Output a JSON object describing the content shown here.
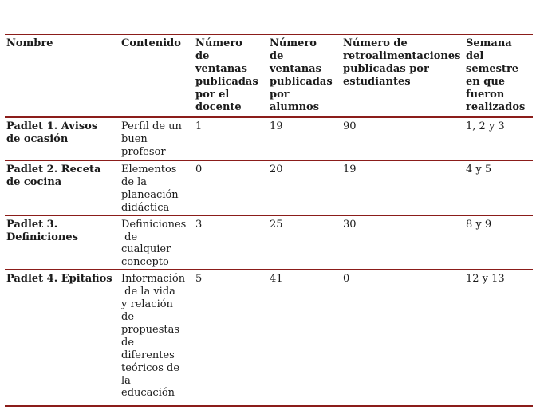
{
  "table": {
    "rule_color": "#8b1d1a",
    "header": {
      "nombre": "Nombre",
      "contenido": "Contenido",
      "ventanas_docente": "Número\nde\nventanas\npublicadas\npor el\ndocente",
      "ventanas_alumnos": "Número\nde\nventanas\npublicadas\npor\nalumnos",
      "retroalimentaciones": "Número de\nretroalimentaciones\npublicadas por\nestudiantes",
      "semana": "Semana\ndel\nsemestre\nen que\nfueron\nrealizados"
    },
    "rows": [
      {
        "nombre": "Padlet 1. Avisos\nde ocasión",
        "contenido": "Perfil de un\nbuen\nprofesor",
        "ventanas_docente": "1",
        "ventanas_alumnos": "19",
        "retroalimentaciones": "90",
        "semana": "1, 2 y 3"
      },
      {
        "nombre": "Padlet 2. Receta\nde cocina",
        "contenido": "Elementos\nde la\nplaneación\ndidáctica",
        "ventanas_docente": "0",
        "ventanas_alumnos": "20",
        "retroalimentaciones": "19",
        "semana": "4 y 5"
      },
      {
        "nombre": "Padlet 3.\nDefiniciones",
        "contenido": "Definiciones\n de\ncualquier\nconcepto",
        "ventanas_docente": "3",
        "ventanas_alumnos": "25",
        "retroalimentaciones": "30",
        "semana": "8 y 9"
      },
      {
        "nombre": "Padlet 4. Epitafios",
        "contenido": "Información\n de la vida\ny relación\nde\npropuestas\nde\ndiferentes\nteóricos de\nla\neducación",
        "ventanas_docente": "5",
        "ventanas_alumnos": "41",
        "retroalimentaciones": "0",
        "semana": "12 y 13"
      }
    ]
  }
}
